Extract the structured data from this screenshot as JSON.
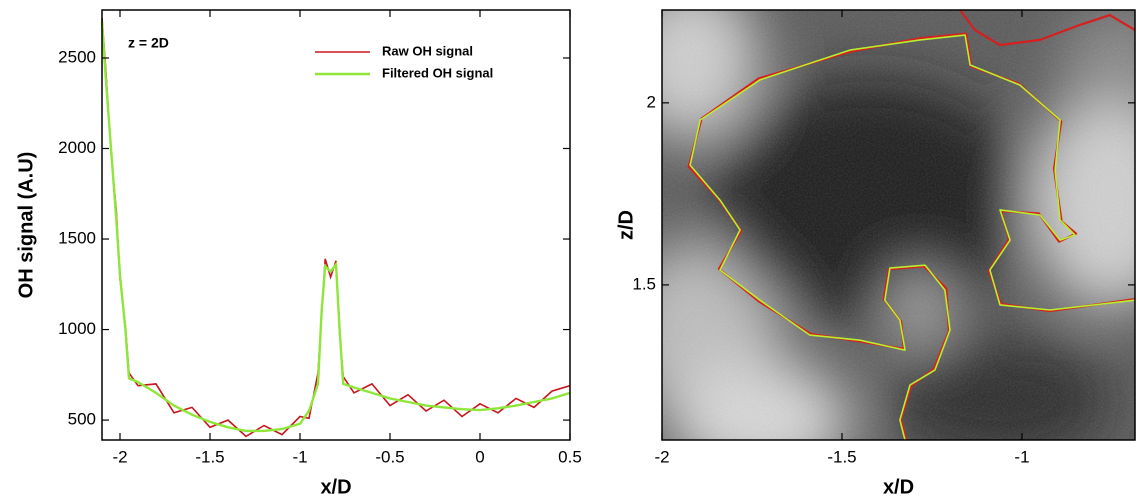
{
  "chart_data": [
    {
      "type": "line",
      "xlabel": "x/D",
      "ylabel": "OH signal (A.U)",
      "annotation": "z = 2D",
      "x": [
        -2.1,
        -2.08,
        -2.05,
        -2.02,
        -2,
        -1.97,
        -1.95,
        -1.9,
        -1.8,
        -1.7,
        -1.6,
        -1.5,
        -1.4,
        -1.3,
        -1.2,
        -1.1,
        -1,
        -0.95,
        -0.9,
        -0.88,
        -0.86,
        -0.83,
        -0.8,
        -0.78,
        -0.76,
        -0.7,
        -0.6,
        -0.5,
        -0.4,
        -0.3,
        -0.2,
        -0.1,
        0,
        0.1,
        0.2,
        0.3,
        0.4,
        0.5
      ],
      "series": [
        {
          "name": "Raw OH signal",
          "color": "#c8161d",
          "values": [
            2720,
            2450,
            1980,
            1650,
            1280,
            1020,
            760,
            690,
            700,
            540,
            570,
            460,
            500,
            410,
            470,
            420,
            520,
            510,
            760,
            1080,
            1390,
            1290,
            1380,
            980,
            740,
            650,
            700,
            580,
            640,
            550,
            610,
            520,
            590,
            540,
            620,
            570,
            660,
            690
          ]
        },
        {
          "name": "Filtered OH signal",
          "color": "#8ee63a",
          "values": [
            2700,
            2400,
            2000,
            1600,
            1300,
            1000,
            730,
            710,
            650,
            580,
            530,
            490,
            460,
            440,
            440,
            450,
            480,
            550,
            700,
            1100,
            1350,
            1320,
            1360,
            1000,
            700,
            680,
            650,
            620,
            600,
            580,
            570,
            560,
            555,
            565,
            580,
            600,
            620,
            650
          ]
        }
      ],
      "xlim": [
        -2.1,
        0.5
      ],
      "ylim": [
        390,
        2765
      ],
      "xticks": [
        -2,
        -1.5,
        -1,
        -0.5,
        0,
        0.5
      ],
      "yticks": [
        500,
        1000,
        1500,
        2000,
        2500
      ],
      "legend": "upper right"
    },
    {
      "type": "contour",
      "xlabel": "x/D",
      "ylabel": "z/D",
      "series": [
        {
          "color": "#d61f1f",
          "x": [
            -1.322,
            -1.336,
            -1.308,
            -1.245,
            -1.203,
            -1.21,
            -1.272,
            -1.37,
            -1.384,
            -1.336,
            -1.328,
            -1.452,
            -1.586,
            -1.731,
            -1.842,
            -1.78,
            -1.843,
            -1.926,
            -1.89,
            -1.732,
            -1.475,
            -1.286,
            -1.155,
            -1.141,
            -1.009,
            -0.891,
            -0.911,
            -0.89,
            -0.85,
            -0.897,
            -0.953,
            -1.058,
            -1.036,
            -1.092,
            -1.058,
            -0.925,
            -0.686,
            null,
            -1.172,
            -1.131,
            -1.061,
            -0.95,
            -0.839,
            -0.756,
            -0.686
          ],
          "y": [
            1.074,
            1.131,
            1.222,
            1.269,
            1.372,
            1.49,
            1.551,
            1.543,
            1.461,
            1.4,
            1.324,
            1.345,
            1.365,
            1.455,
            1.544,
            1.648,
            1.736,
            1.825,
            1.957,
            2.067,
            2.141,
            2.177,
            2.19,
            2.1,
            2.053,
            1.949,
            1.819,
            1.674,
            1.641,
            1.619,
            1.696,
            1.703,
            1.626,
            1.538,
            1.448,
            1.428,
            1.461,
            null,
            2.255,
            2.2,
            2.159,
            2.173,
            2.214,
            2.241,
            2.2
          ]
        },
        {
          "color": "#b6f02e",
          "x": [
            -1.325,
            -1.339,
            -1.311,
            -1.242,
            -1.2,
            -1.214,
            -1.269,
            -1.367,
            -1.381,
            -1.339,
            -1.325,
            -1.45,
            -1.589,
            -1.728,
            -1.839,
            -1.783,
            -1.839,
            -1.922,
            -1.894,
            -1.728,
            -1.478,
            -1.283,
            -1.158,
            -1.144,
            -1.006,
            -0.894,
            -0.908,
            -0.894,
            -0.853,
            -0.894,
            -0.95,
            -1.061,
            -1.033,
            -1.089,
            -1.061,
            -0.922,
            -0.686
          ],
          "y": [
            1.074,
            1.129,
            1.225,
            1.266,
            1.376,
            1.486,
            1.554,
            1.546,
            1.458,
            1.403,
            1.321,
            1.348,
            1.362,
            1.458,
            1.541,
            1.651,
            1.733,
            1.829,
            1.953,
            2.063,
            2.145,
            2.173,
            2.186,
            2.104,
            2.049,
            1.953,
            1.815,
            1.678,
            1.637,
            1.623,
            1.692,
            1.706,
            1.623,
            1.541,
            1.445,
            1.431,
            1.458
          ]
        }
      ],
      "xlim": [
        -2,
        -0.686
      ],
      "ylim": [
        1.074,
        2.255
      ],
      "xticks": [
        -2,
        -1.5,
        -1
      ],
      "yticks": [
        1.5,
        2
      ]
    }
  ]
}
